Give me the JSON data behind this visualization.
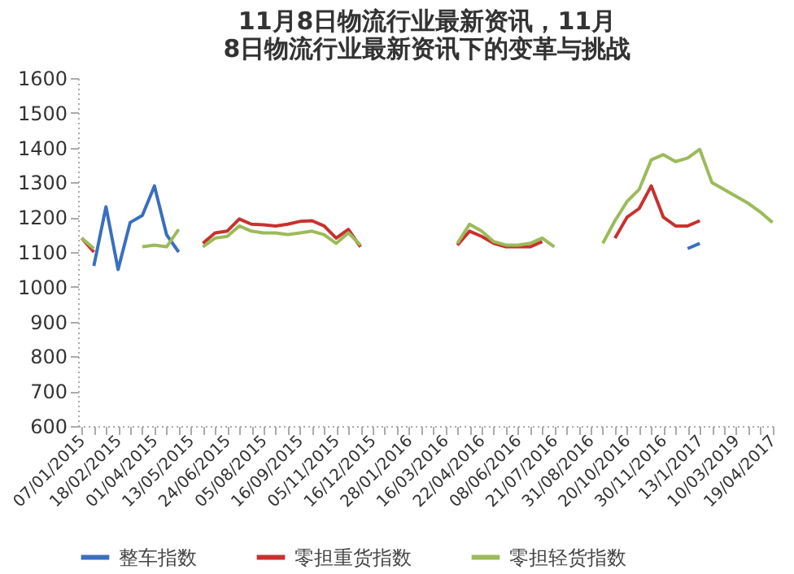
{
  "chart_data": {
    "type": "line",
    "title": "11月8日物流行业最新资讯，11月8日物流行业最新资讯下的变革与挑战",
    "categories": [
      "07/01/2015",
      null,
      null,
      "18/02/2015",
      null,
      null,
      "01/04/2015",
      null,
      null,
      "13/05/2015",
      null,
      null,
      "24/06/2015",
      null,
      null,
      "05/08/2015",
      null,
      null,
      "16/09/2015",
      null,
      null,
      "05/11/2015",
      null,
      null,
      "16/12/2015",
      null,
      null,
      "28/01/2016",
      null,
      null,
      "16/03/2016",
      null,
      null,
      "22/04/2016",
      null,
      null,
      "08/06/2016",
      null,
      null,
      "21/07/2016",
      null,
      null,
      "31/08/2016",
      null,
      null,
      "20/10/2016",
      null,
      null,
      "30/11/2016",
      null,
      null,
      "13/1/2017",
      null,
      null,
      "10/03/2019",
      null,
      null,
      "19/04/2017"
    ],
    "series": [
      {
        "name": "整车指数",
        "color": "#3a6fbf",
        "values": [
          null,
          1060,
          1230,
          1050,
          1185,
          1205,
          1290,
          1150,
          1100,
          null,
          null,
          null,
          null,
          null,
          null,
          null,
          null,
          null,
          null,
          null,
          null,
          null,
          null,
          null,
          null,
          null,
          null,
          null,
          null,
          null,
          null,
          null,
          null,
          null,
          null,
          null,
          null,
          null,
          null,
          null,
          null,
          null,
          null,
          null,
          null,
          null,
          null,
          null,
          null,
          null,
          1110,
          1125,
          null,
          null,
          null,
          null,
          null,
          null
        ]
      },
      {
        "name": "零担重货指数",
        "color": "#c8312f",
        "values": [
          1140,
          1100,
          null,
          null,
          null,
          null,
          null,
          null,
          null,
          null,
          1125,
          1155,
          1160,
          1195,
          1180,
          1178,
          1175,
          1180,
          1188,
          1190,
          1175,
          1140,
          1165,
          1115,
          null,
          null,
          null,
          null,
          null,
          null,
          null,
          1120,
          1160,
          1145,
          1125,
          1115,
          1115,
          1115,
          1130,
          null,
          null,
          null,
          null,
          null,
          1140,
          1200,
          1225,
          1290,
          1200,
          1175,
          1175,
          1190,
          null,
          null,
          null,
          null,
          null,
          null
        ]
      },
      {
        "name": "零担轻货指数",
        "color": "#9bbb59",
        "values": [
          1140,
          1110,
          null,
          null,
          null,
          1115,
          1120,
          1115,
          1165,
          null,
          1115,
          1140,
          1145,
          1175,
          1160,
          1155,
          1155,
          1150,
          1155,
          1160,
          1150,
          1125,
          1155,
          1120,
          null,
          null,
          null,
          null,
          null,
          null,
          null,
          1125,
          1180,
          1160,
          1130,
          1120,
          1120,
          1125,
          1140,
          1115,
          null,
          null,
          null,
          1125,
          1190,
          1245,
          1280,
          1365,
          1380,
          1360,
          1370,
          1395,
          1300,
          1280,
          1260,
          1240,
          1215,
          1185
        ]
      }
    ],
    "ylim": [
      600,
      1600
    ],
    "yticks": [
      600,
      700,
      800,
      900,
      1000,
      1100,
      1200,
      1300,
      1400,
      1500,
      1600
    ],
    "legend": "bottom",
    "grid": false,
    "marker": "none",
    "line_style": "solid"
  }
}
